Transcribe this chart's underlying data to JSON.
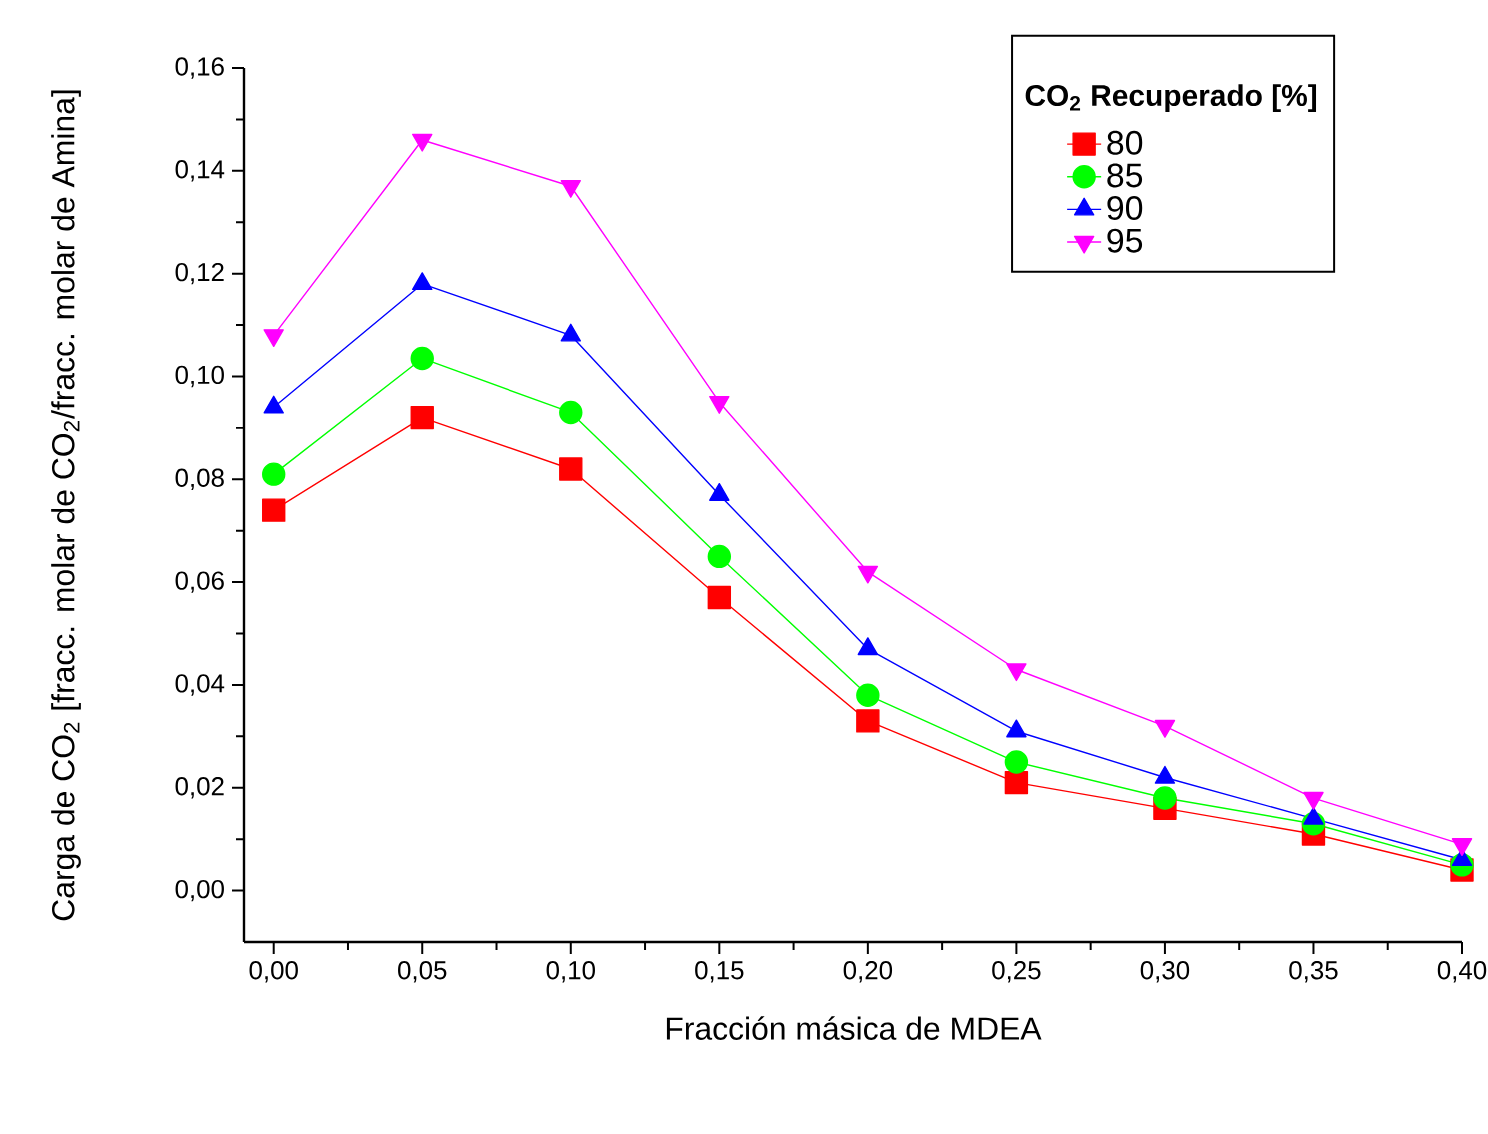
{
  "chart_data": {
    "type": "line",
    "xlabel": "Fracción másica de MDEA",
    "ylabel": "Carga de CO$_{2}$ [fracc. molar de CO$_{2}$/fracc. molar de Amina]",
    "legend_title": "**CO$_{2}$ Recuperado [%]**",
    "x": [
      0,
      0.05,
      0.1,
      0.15,
      0.2,
      0.25,
      0.3,
      0.35,
      0.4
    ],
    "series": [
      {
        "name": "80",
        "color": "#ff0000",
        "marker": "square",
        "values": [
          0.074,
          0.092,
          0.082,
          0.057,
          0.033,
          0.021,
          0.016,
          0.011,
          0.004
        ]
      },
      {
        "name": "85",
        "color": "#00ff00",
        "marker": "circle",
        "values": [
          0.081,
          0.1035,
          0.093,
          0.065,
          0.038,
          0.025,
          0.018,
          0.013,
          0.005
        ]
      },
      {
        "name": "90",
        "color": "#0000ff",
        "marker": "triangle",
        "values": [
          0.094,
          0.118,
          0.108,
          0.077,
          0.047,
          0.031,
          0.022,
          0.014,
          0.006
        ]
      },
      {
        "name": "95",
        "color": "#ff00ff",
        "marker": "triangle-down",
        "values": [
          0.108,
          0.146,
          0.137,
          0.095,
          0.062,
          0.043,
          0.032,
          0.018,
          0.009
        ]
      }
    ],
    "xlim": [
      -0.01,
      0.4
    ],
    "ylim": [
      -0.01,
      0.16
    ],
    "xticks": [
      {
        "value": 0,
        "label": "0,00"
      },
      {
        "value": 0.05,
        "label": "0,05"
      },
      {
        "value": 0.1,
        "label": "0,10"
      },
      {
        "value": 0.15,
        "label": "0,15"
      },
      {
        "value": 0.2,
        "label": "0,20"
      },
      {
        "value": 0.25,
        "label": "0,25"
      },
      {
        "value": 0.3,
        "label": "0,30"
      },
      {
        "value": 0.35,
        "label": "0,35"
      },
      {
        "value": 0.4,
        "label": "0,40"
      }
    ],
    "yticks": [
      {
        "value": 0,
        "label": "0,00"
      },
      {
        "value": 0.02,
        "label": "0,02"
      },
      {
        "value": 0.04,
        "label": "0,04"
      },
      {
        "value": 0.06,
        "label": "0,06"
      },
      {
        "value": 0.08,
        "label": "0,08"
      },
      {
        "value": 0.1,
        "label": "0,10"
      },
      {
        "value": 0.12,
        "label": "0,12"
      },
      {
        "value": 0.14,
        "label": "0,14"
      },
      {
        "value": 0.16,
        "label": "0,16"
      }
    ],
    "grid": false,
    "legend": "top right",
    "line_style": "solid"
  }
}
